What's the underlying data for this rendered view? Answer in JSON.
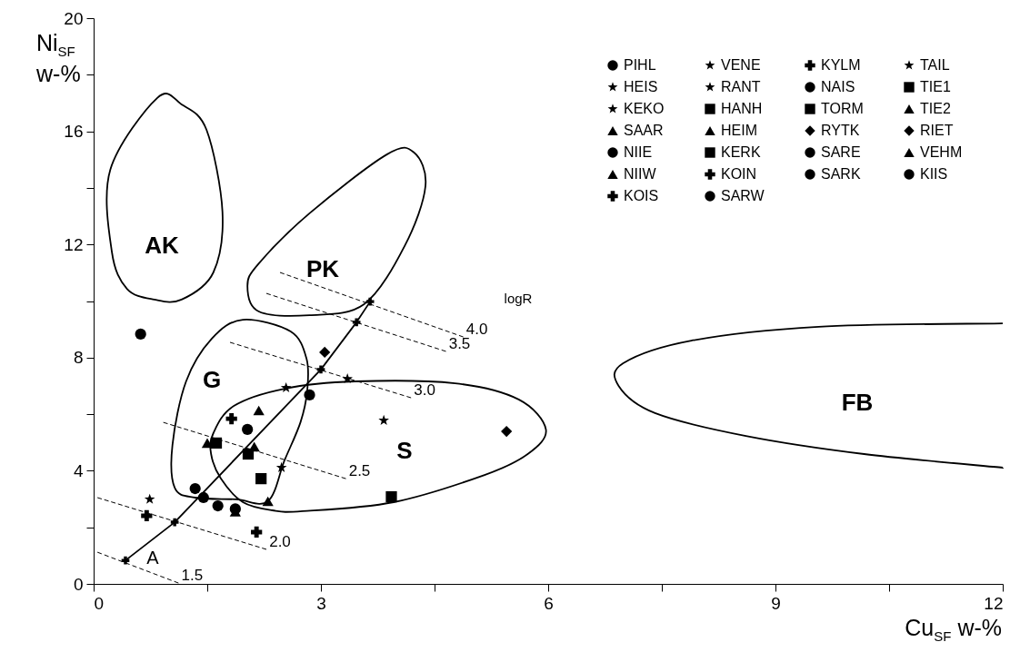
{
  "chart_data": {
    "type": "scatter",
    "xlabel": "Cu$_{SF}$ w-%",
    "ylabel": "Ni$_{SF}$ w-%",
    "xlim": [
      0,
      12
    ],
    "ylim": [
      0,
      20
    ],
    "xticks": [
      0,
      {
        "value": 1.5,
        "label": null
      },
      3,
      {
        "value": 4.5,
        "label": null
      },
      6,
      {
        "value": 7.5,
        "label": null
      },
      9,
      {
        "value": 10.5,
        "label": null
      },
      12
    ],
    "yticks": [
      0,
      {
        "value": 2,
        "label": null
      },
      4,
      {
        "value": 6,
        "label": null
      },
      8,
      {
        "value": 10,
        "label": null
      },
      12,
      {
        "value": 14,
        "label": null
      },
      16,
      {
        "value": 18,
        "label": null
      },
      20
    ],
    "legend": "top right",
    "annotations": [
      "AK",
      "PK",
      "G",
      "S",
      "FB",
      "logR"
    ],
    "series": [
      {
        "name": "PIHL",
        "color": "#000000",
        "marker": "circle",
        "x": [
          0.62
        ],
        "values": [
          8.83
        ]
      },
      {
        "name": "HEIS",
        "color": "#000000",
        "marker": "star",
        "x": [
          3.35
        ],
        "values": [
          7.25
        ]
      },
      {
        "name": "KEKO",
        "color": "#000000",
        "marker": "star",
        "x": [
          2.54
        ],
        "values": [
          6.93
        ]
      },
      {
        "name": "SAAR",
        "color": "#000000",
        "marker": "triangle",
        "x": [
          2.18
        ],
        "values": [
          6.13
        ]
      },
      {
        "name": "NIIE",
        "color": "#000000",
        "marker": "circle",
        "x": [
          2.03
        ],
        "values": [
          5.46
        ]
      },
      {
        "name": "NIIW",
        "color": "#000000",
        "marker": "triangle",
        "x": [
          1.5
        ],
        "values": [
          4.98
        ]
      },
      {
        "name": "KIIS",
        "color": "#000000",
        "marker": "circle",
        "x": [
          1.34
        ],
        "values": [
          3.37
        ]
      },
      {
        "name": "VENE",
        "color": "#000000",
        "marker": "star",
        "x": [
          3.83
        ],
        "values": [
          5.78
        ]
      },
      {
        "name": "RANT",
        "color": "#000000",
        "marker": "star",
        "x": [
          2.48
        ],
        "values": [
          4.11
        ]
      },
      {
        "name": "HANH",
        "color": "#000000",
        "marker": "square",
        "x": [
          1.62
        ],
        "values": [
          4.98
        ]
      },
      {
        "name": "HEIM",
        "color": "#000000",
        "marker": "triangle",
        "x": [
          2.12
        ],
        "values": [
          4.85
        ]
      },
      {
        "name": "KERK",
        "color": "#000000",
        "marker": "square",
        "x": [
          3.93
        ],
        "values": [
          3.08
        ]
      },
      {
        "name": "KOIN",
        "color": "#000000",
        "marker": "cross",
        "x": [
          0.7
        ],
        "values": [
          2.41
        ]
      },
      {
        "name": "KOIS",
        "color": "#000000",
        "marker": "cross",
        "x": [
          1.82
        ],
        "values": [
          5.84
        ]
      },
      {
        "name": "KYLM",
        "color": "#000000",
        "marker": "cross",
        "x": [
          2.15
        ],
        "values": [
          1.83
        ]
      },
      {
        "name": "NAIS",
        "color": "#000000",
        "marker": "circle",
        "x": [
          2.85
        ],
        "values": [
          6.68
        ]
      },
      {
        "name": "TORM",
        "color": "#000000",
        "marker": "square",
        "x": [
          2.21
        ],
        "values": [
          3.72
        ]
      },
      {
        "name": "RYTK",
        "color": "#000000",
        "marker": "diamond",
        "x": [
          3.05
        ],
        "values": [
          8.19
        ]
      },
      {
        "name": "SARE",
        "color": "#000000",
        "marker": "circle",
        "x": [
          1.87
        ],
        "values": [
          2.65
        ]
      },
      {
        "name": "SARK",
        "color": "#000000",
        "marker": "circle",
        "x": [
          1.64
        ],
        "values": [
          2.76
        ]
      },
      {
        "name": "SARW",
        "color": "#000000",
        "marker": "circle",
        "x": [
          1.45
        ],
        "values": [
          3.05
        ]
      },
      {
        "name": "TAIL",
        "color": "#000000",
        "marker": "star",
        "x": [
          0.74
        ],
        "values": [
          2.99
        ]
      },
      {
        "name": "TIE1",
        "color": "#000000",
        "marker": "square",
        "x": [
          2.04
        ],
        "values": [
          4.59
        ]
      },
      {
        "name": "TIE2",
        "color": "#000000",
        "marker": "triangle",
        "x": [
          1.87
        ],
        "values": [
          2.55
        ]
      },
      {
        "name": "RIET",
        "color": "#000000",
        "marker": "diamond",
        "x": [
          5.45
        ],
        "values": [
          5.39
        ]
      },
      {
        "name": "VEHM",
        "color": "#000000",
        "marker": "triangle",
        "x": [
          2.3
        ],
        "values": [
          2.92
        ]
      },
      {
        "type": "line",
        "name": "A",
        "color": "#000000",
        "line_style": "solid",
        "marker": "cross",
        "x": [
          0.42,
          1.07,
          3.0,
          3.47,
          3.65
        ],
        "values": [
          0.83,
          2.18,
          7.58,
          9.25,
          9.98
        ]
      },
      {
        "type": "line",
        "name": "1.5",
        "color": "#000000",
        "line_style": "dashed",
        "marker": "none",
        "x": [
          0.05,
          1.12
        ],
        "values": [
          1.12,
          0.03
        ]
      },
      {
        "type": "line",
        "name": "2.0",
        "color": "#000000",
        "line_style": "dashed",
        "marker": "none",
        "x": [
          0.05,
          2.28
        ],
        "values": [
          3.05,
          1.22
        ]
      },
      {
        "type": "line",
        "name": "2.5",
        "color": "#000000",
        "line_style": "dashed",
        "marker": "none",
        "x": [
          0.92,
          3.33
        ],
        "values": [
          5.71,
          3.72
        ]
      },
      {
        "type": "line",
        "name": "3.0",
        "color": "#000000",
        "line_style": "dashed",
        "marker": "none",
        "x": [
          1.8,
          4.19
        ],
        "values": [
          8.54,
          6.58
        ]
      },
      {
        "type": "line",
        "name": "3.5",
        "color": "#000000",
        "line_style": "dashed",
        "marker": "none",
        "x": [
          2.28,
          4.65
        ],
        "values": [
          10.27,
          8.22
        ]
      },
      {
        "type": "line",
        "name": "4.0",
        "color": "#000000",
        "line_style": "dashed",
        "marker": "none",
        "x": [
          2.46,
          4.88
        ],
        "values": [
          11.01,
          8.73
        ]
      }
    ]
  }
}
